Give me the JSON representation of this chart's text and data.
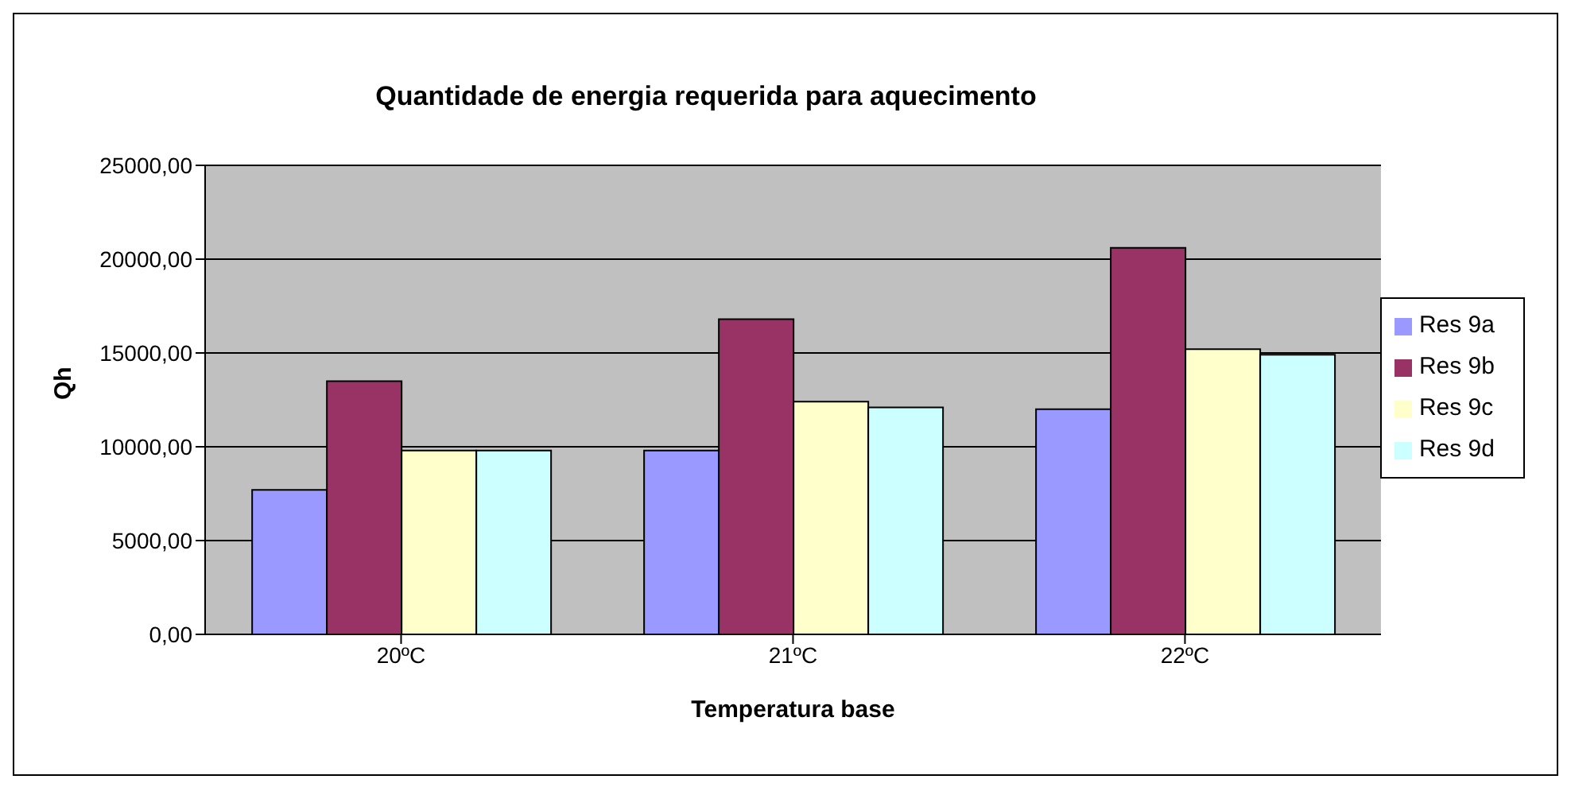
{
  "chart_data": {
    "type": "bar",
    "title": "Quantidade de energia requerida para aquecimento",
    "xlabel": "Temperatura base",
    "ylabel": "Qh",
    "categories": [
      "20ºC",
      "21ºC",
      "22ºC"
    ],
    "series": [
      {
        "name": "Res 9a",
        "color": "#9999ff",
        "values": [
          7700,
          9800,
          12000
        ]
      },
      {
        "name": "Res 9b",
        "color": "#993366",
        "values": [
          13500,
          16800,
          20600
        ]
      },
      {
        "name": "Res 9c",
        "color": "#ffffcc",
        "values": [
          9800,
          12400,
          15200
        ]
      },
      {
        "name": "Res 9d",
        "color": "#ccffff",
        "values": [
          9800,
          12100,
          14900
        ]
      }
    ],
    "ylim": [
      0,
      25000
    ],
    "yticks": [
      {
        "value": 0,
        "label": "0,00"
      },
      {
        "value": 5000,
        "label": "5000,00"
      },
      {
        "value": 10000,
        "label": "10000,00"
      },
      {
        "value": 15000,
        "label": "15000,00"
      },
      {
        "value": 20000,
        "label": "20000,00"
      },
      {
        "value": 25000,
        "label": "25000,00"
      }
    ],
    "grid": "y",
    "legend": "right"
  }
}
